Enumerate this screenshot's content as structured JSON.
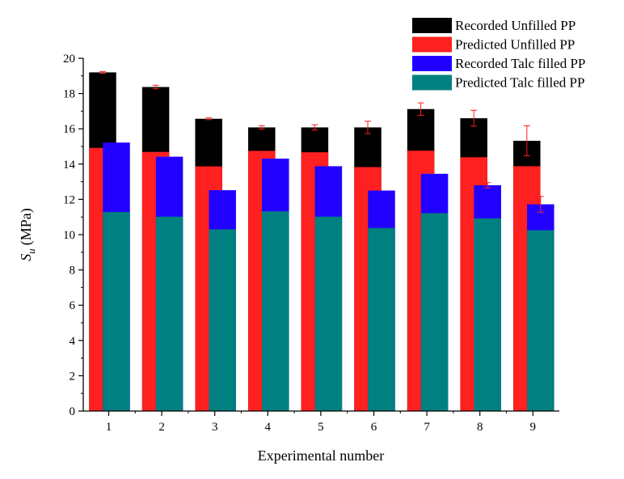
{
  "chart_data": {
    "type": "bar",
    "xlabel": "Experimental number",
    "ylabel_main": "S",
    "ylabel_sub": "u",
    "ylabel_unit": "(MPa)",
    "ylim": [
      0,
      20
    ],
    "yticks": [
      "0",
      "2",
      "4",
      "6",
      "8",
      "10",
      "12",
      "14",
      "16",
      "18",
      "20"
    ],
    "categories": [
      "1",
      "2",
      "3",
      "4",
      "5",
      "6",
      "7",
      "8",
      "9"
    ],
    "grid": false,
    "legend_position": "top-right",
    "series": [
      {
        "name": "Recorded Unfilled PP",
        "color": "#000000",
        "group": "unfilled",
        "values": [
          19.2,
          18.37,
          16.57,
          16.08,
          16.08,
          16.08,
          17.12,
          16.6,
          15.32
        ],
        "errors": [
          0.05,
          0.1,
          0.05,
          0.1,
          0.15,
          0.35,
          0.35,
          0.45,
          0.85
        ]
      },
      {
        "name": "Predicted Unfilled PP",
        "color": "#ff2020",
        "group": "unfilled",
        "values": [
          14.92,
          14.69,
          13.87,
          14.75,
          14.67,
          13.83,
          14.76,
          14.39,
          13.88
        ]
      },
      {
        "name": "Recorded Talc filled PP",
        "color": "#2200ff",
        "group": "talc",
        "values": [
          15.22,
          14.42,
          12.52,
          14.31,
          13.88,
          12.5,
          13.45,
          12.8,
          11.72
        ],
        "errors": [
          0.0,
          0.0,
          0.0,
          0.0,
          0.0,
          0.0,
          0.0,
          0.15,
          0.45
        ]
      },
      {
        "name": "Predicted Talc filled PP",
        "color": "#008080",
        "group": "talc",
        "values": [
          11.28,
          11.02,
          10.3,
          11.32,
          11.02,
          10.38,
          11.22,
          10.92,
          10.25
        ]
      }
    ],
    "error_color": "#ff2020"
  }
}
